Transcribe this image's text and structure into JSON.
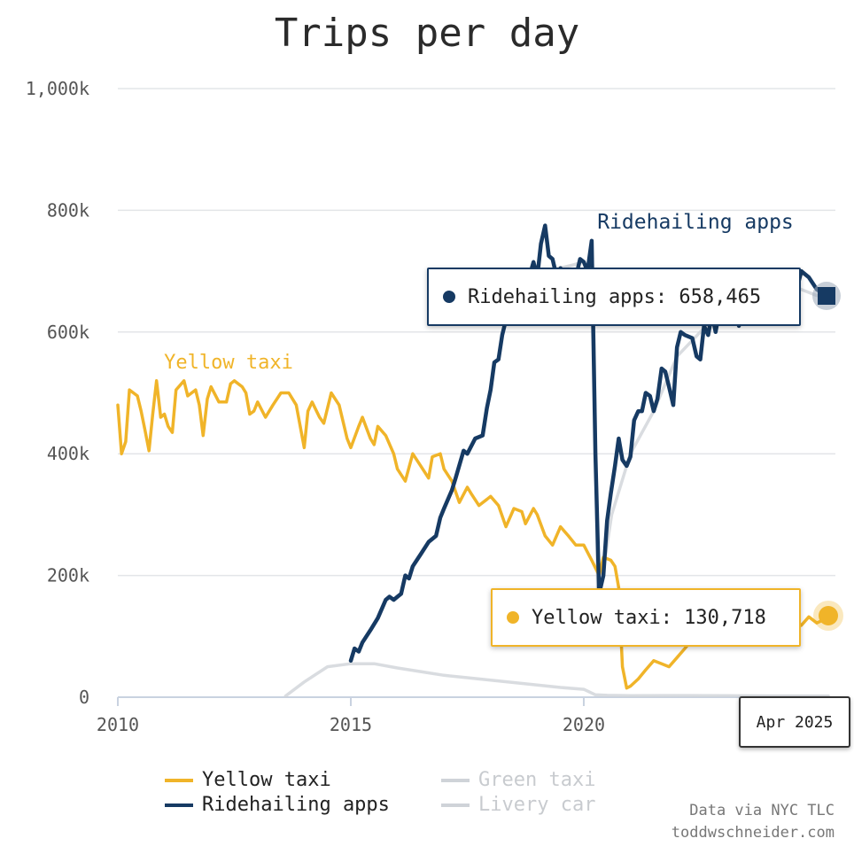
{
  "chart_data": {
    "type": "line",
    "title": "Trips per day",
    "xlabel": "",
    "ylabel": "",
    "xlim": [
      2010,
      2025.4
    ],
    "ylim": [
      0,
      1000000
    ],
    "x_ticks": [
      "2010",
      "2015",
      "2020"
    ],
    "y_ticks": [
      "0",
      "200k",
      "400k",
      "600k",
      "800k",
      "1,000k"
    ],
    "grid": "horizontal",
    "series": [
      {
        "name": "Yellow taxi",
        "color": "#f0b429",
        "points": [
          [
            2010.0,
            480000
          ],
          [
            2010.08,
            400000
          ],
          [
            2010.17,
            420000
          ],
          [
            2010.25,
            505000
          ],
          [
            2010.42,
            495000
          ],
          [
            2010.5,
            470000
          ],
          [
            2010.58,
            440000
          ],
          [
            2010.67,
            405000
          ],
          [
            2010.75,
            465000
          ],
          [
            2010.83,
            520000
          ],
          [
            2010.92,
            460000
          ],
          [
            2011.0,
            465000
          ],
          [
            2011.08,
            445000
          ],
          [
            2011.17,
            435000
          ],
          [
            2011.25,
            505000
          ],
          [
            2011.42,
            520000
          ],
          [
            2011.5,
            495000
          ],
          [
            2011.67,
            505000
          ],
          [
            2011.75,
            480000
          ],
          [
            2011.83,
            430000
          ],
          [
            2011.92,
            490000
          ],
          [
            2012.0,
            510000
          ],
          [
            2012.17,
            485000
          ],
          [
            2012.33,
            485000
          ],
          [
            2012.42,
            515000
          ],
          [
            2012.5,
            520000
          ],
          [
            2012.67,
            510000
          ],
          [
            2012.75,
            500000
          ],
          [
            2012.83,
            465000
          ],
          [
            2012.92,
            470000
          ],
          [
            2013.0,
            485000
          ],
          [
            2013.17,
            460000
          ],
          [
            2013.33,
            480000
          ],
          [
            2013.5,
            500000
          ],
          [
            2013.67,
            500000
          ],
          [
            2013.83,
            480000
          ],
          [
            2014.0,
            410000
          ],
          [
            2014.08,
            470000
          ],
          [
            2014.17,
            485000
          ],
          [
            2014.33,
            460000
          ],
          [
            2014.42,
            450000
          ],
          [
            2014.58,
            500000
          ],
          [
            2014.75,
            480000
          ],
          [
            2014.92,
            425000
          ],
          [
            2015.0,
            410000
          ],
          [
            2015.17,
            445000
          ],
          [
            2015.25,
            460000
          ],
          [
            2015.42,
            425000
          ],
          [
            2015.5,
            415000
          ],
          [
            2015.58,
            445000
          ],
          [
            2015.75,
            430000
          ],
          [
            2015.92,
            400000
          ],
          [
            2016.0,
            375000
          ],
          [
            2016.17,
            355000
          ],
          [
            2016.33,
            400000
          ],
          [
            2016.5,
            380000
          ],
          [
            2016.67,
            360000
          ],
          [
            2016.75,
            395000
          ],
          [
            2016.92,
            400000
          ],
          [
            2017.0,
            375000
          ],
          [
            2017.17,
            355000
          ],
          [
            2017.33,
            320000
          ],
          [
            2017.5,
            345000
          ],
          [
            2017.58,
            335000
          ],
          [
            2017.75,
            315000
          ],
          [
            2017.92,
            325000
          ],
          [
            2018.0,
            330000
          ],
          [
            2018.17,
            315000
          ],
          [
            2018.33,
            280000
          ],
          [
            2018.5,
            310000
          ],
          [
            2018.67,
            305000
          ],
          [
            2018.75,
            285000
          ],
          [
            2018.92,
            310000
          ],
          [
            2019.0,
            300000
          ],
          [
            2019.17,
            265000
          ],
          [
            2019.33,
            250000
          ],
          [
            2019.5,
            280000
          ],
          [
            2019.67,
            265000
          ],
          [
            2019.83,
            250000
          ],
          [
            2020.0,
            250000
          ],
          [
            2020.17,
            225000
          ],
          [
            2020.33,
            200000
          ],
          [
            2020.42,
            230000
          ],
          [
            2020.58,
            225000
          ],
          [
            2020.67,
            215000
          ],
          [
            2020.75,
            180000
          ],
          [
            2020.83,
            50000
          ],
          [
            2020.92,
            15000
          ],
          [
            2021.0,
            18000
          ],
          [
            2021.17,
            30000
          ],
          [
            2021.33,
            45000
          ],
          [
            2021.5,
            60000
          ],
          [
            2021.67,
            55000
          ],
          [
            2021.83,
            50000
          ],
          [
            2022.0,
            65000
          ],
          [
            2022.17,
            80000
          ],
          [
            2022.33,
            95000
          ],
          [
            2022.5,
            95000
          ],
          [
            2022.67,
            110000
          ],
          [
            2022.83,
            100000
          ],
          [
            2023.0,
            115000
          ],
          [
            2023.17,
            120000
          ],
          [
            2023.33,
            118000
          ],
          [
            2023.5,
            125000
          ],
          [
            2023.67,
            115000
          ],
          [
            2023.83,
            125000
          ],
          [
            2024.0,
            118000
          ],
          [
            2024.17,
            125000
          ],
          [
            2024.33,
            115000
          ],
          [
            2024.5,
            128000
          ],
          [
            2024.67,
            118000
          ],
          [
            2024.83,
            132000
          ],
          [
            2025.0,
            122000
          ],
          [
            2025.25,
            130718
          ]
        ]
      },
      {
        "name": "Ridehailing apps",
        "color": "#163a63",
        "points": [
          [
            2015.0,
            60000
          ],
          [
            2015.08,
            80000
          ],
          [
            2015.17,
            75000
          ],
          [
            2015.25,
            90000
          ],
          [
            2015.42,
            110000
          ],
          [
            2015.58,
            130000
          ],
          [
            2015.75,
            160000
          ],
          [
            2015.83,
            165000
          ],
          [
            2015.92,
            160000
          ],
          [
            2016.0,
            165000
          ],
          [
            2016.08,
            170000
          ],
          [
            2016.17,
            200000
          ],
          [
            2016.25,
            195000
          ],
          [
            2016.33,
            215000
          ],
          [
            2016.5,
            235000
          ],
          [
            2016.67,
            255000
          ],
          [
            2016.83,
            265000
          ],
          [
            2016.92,
            295000
          ],
          [
            2017.0,
            310000
          ],
          [
            2017.17,
            340000
          ],
          [
            2017.25,
            360000
          ],
          [
            2017.42,
            405000
          ],
          [
            2017.5,
            400000
          ],
          [
            2017.67,
            425000
          ],
          [
            2017.83,
            430000
          ],
          [
            2017.92,
            475000
          ],
          [
            2018.0,
            505000
          ],
          [
            2018.08,
            550000
          ],
          [
            2018.17,
            555000
          ],
          [
            2018.25,
            595000
          ],
          [
            2018.33,
            620000
          ],
          [
            2018.42,
            625000
          ],
          [
            2018.5,
            630000
          ],
          [
            2018.67,
            660000
          ],
          [
            2018.75,
            685000
          ],
          [
            2018.83,
            690000
          ],
          [
            2018.92,
            715000
          ],
          [
            2019.0,
            690000
          ],
          [
            2019.08,
            745000
          ],
          [
            2019.17,
            775000
          ],
          [
            2019.25,
            725000
          ],
          [
            2019.33,
            720000
          ],
          [
            2019.42,
            690000
          ],
          [
            2019.5,
            705000
          ],
          [
            2019.67,
            685000
          ],
          [
            2019.75,
            680000
          ],
          [
            2019.83,
            690000
          ],
          [
            2019.92,
            720000
          ],
          [
            2020.0,
            715000
          ],
          [
            2020.08,
            700000
          ],
          [
            2020.17,
            750000
          ],
          [
            2020.25,
            400000
          ],
          [
            2020.33,
            170000
          ],
          [
            2020.42,
            200000
          ],
          [
            2020.5,
            290000
          ],
          [
            2020.58,
            335000
          ],
          [
            2020.67,
            380000
          ],
          [
            2020.75,
            425000
          ],
          [
            2020.83,
            390000
          ],
          [
            2020.92,
            380000
          ],
          [
            2021.0,
            395000
          ],
          [
            2021.08,
            455000
          ],
          [
            2021.17,
            470000
          ],
          [
            2021.25,
            470000
          ],
          [
            2021.33,
            500000
          ],
          [
            2021.42,
            495000
          ],
          [
            2021.5,
            470000
          ],
          [
            2021.58,
            490000
          ],
          [
            2021.67,
            540000
          ],
          [
            2021.75,
            535000
          ],
          [
            2021.83,
            510000
          ],
          [
            2021.92,
            480000
          ],
          [
            2022.0,
            575000
          ],
          [
            2022.08,
            600000
          ],
          [
            2022.17,
            595000
          ],
          [
            2022.33,
            590000
          ],
          [
            2022.42,
            560000
          ],
          [
            2022.5,
            555000
          ],
          [
            2022.58,
            610000
          ],
          [
            2022.67,
            595000
          ],
          [
            2022.75,
            630000
          ],
          [
            2022.83,
            600000
          ],
          [
            2022.92,
            640000
          ],
          [
            2023.0,
            650000
          ],
          [
            2023.08,
            640000
          ],
          [
            2023.17,
            655000
          ],
          [
            2023.25,
            640000
          ],
          [
            2023.33,
            610000
          ],
          [
            2023.42,
            650000
          ],
          [
            2023.5,
            660000
          ],
          [
            2023.58,
            650000
          ],
          [
            2023.67,
            670000
          ],
          [
            2023.75,
            640000
          ],
          [
            2023.83,
            655000
          ],
          [
            2023.92,
            680000
          ],
          [
            2024.0,
            620000
          ],
          [
            2024.17,
            640000
          ],
          [
            2024.33,
            645000
          ],
          [
            2024.5,
            650000
          ],
          [
            2024.67,
            700000
          ],
          [
            2024.83,
            690000
          ],
          [
            2025.0,
            670000
          ],
          [
            2025.25,
            658465
          ]
        ]
      },
      {
        "name": "Green taxi",
        "color": "#cfd3d8",
        "muted": true,
        "points": [
          [
            2013.6,
            2000
          ],
          [
            2014.0,
            25000
          ],
          [
            2014.5,
            50000
          ],
          [
            2015.0,
            55000
          ],
          [
            2015.5,
            55000
          ],
          [
            2016.0,
            48000
          ],
          [
            2016.5,
            42000
          ],
          [
            2017.0,
            36000
          ],
          [
            2017.5,
            32000
          ],
          [
            2018.0,
            28000
          ],
          [
            2018.5,
            24000
          ],
          [
            2019.0,
            20000
          ],
          [
            2019.5,
            16000
          ],
          [
            2020.0,
            13000
          ],
          [
            2020.25,
            4000
          ],
          [
            2020.5,
            3000
          ],
          [
            2021.0,
            2500
          ],
          [
            2022.0,
            2800
          ],
          [
            2023.0,
            2500
          ],
          [
            2024.0,
            2000
          ],
          [
            2025.25,
            1800
          ]
        ]
      },
      {
        "name": "Livery car",
        "color": "#cfd3d8",
        "muted": true,
        "points": [
          [
            2018.0,
            640000
          ],
          [
            2018.5,
            680000
          ],
          [
            2019.0,
            700000
          ],
          [
            2019.5,
            705000
          ],
          [
            2020.0,
            715000
          ],
          [
            2020.2,
            690000
          ],
          [
            2020.3,
            150000
          ],
          [
            2020.6,
            300000
          ],
          [
            2021.0,
            400000
          ],
          [
            2021.5,
            470000
          ],
          [
            2022.0,
            560000
          ],
          [
            2022.5,
            600000
          ],
          [
            2023.0,
            640000
          ],
          [
            2023.5,
            650000
          ],
          [
            2024.0,
            670000
          ],
          [
            2024.5,
            675000
          ],
          [
            2025.0,
            660000
          ]
        ]
      }
    ],
    "annotations": [
      {
        "text": "Ridehailing apps",
        "series": 1
      },
      {
        "text": "Yellow taxi",
        "series": 0
      }
    ],
    "legend": {
      "placement": "bottom",
      "items": [
        "Yellow taxi",
        "Green taxi",
        "Ridehailing apps",
        "Livery car"
      ]
    },
    "tooltip": {
      "ridehailing": "Ridehailing apps: 658,465",
      "yellow": "Yellow taxi: 130,718",
      "date": "Apr 2025"
    },
    "source": [
      "Data via NYC TLC",
      "toddwschneider.com"
    ]
  }
}
